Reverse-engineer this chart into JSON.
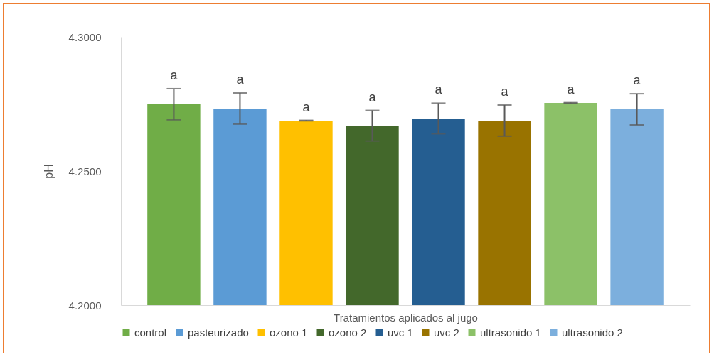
{
  "chart_data": {
    "type": "bar",
    "xlabel": "Tratamientos aplicados al jugo",
    "ylabel": "pH",
    "categories": [
      null
    ],
    "series": [
      {
        "name": "control",
        "color": "#70ad47",
        "values": [
          4.2749
        ],
        "errors": [
          0.0058
        ]
      },
      {
        "name": "pasteurizado",
        "color": "#5b9bd5",
        "values": [
          4.2733
        ],
        "errors": [
          0.0058
        ]
      },
      {
        "name": "ozono 1",
        "color": "#ffc000",
        "values": [
          4.2688
        ],
        "errors": [
          0.0001
        ]
      },
      {
        "name": "ozono 2",
        "color": "#43682b",
        "values": [
          4.2669
        ],
        "errors": [
          0.0057
        ]
      },
      {
        "name": "uvc 1",
        "color": "#255e91",
        "values": [
          4.2696
        ],
        "errors": [
          0.0057
        ]
      },
      {
        "name": "uvc 2",
        "color": "#997300",
        "values": [
          4.2688
        ],
        "errors": [
          0.0058
        ]
      },
      {
        "name": "ultrasonido 1",
        "color": "#8cc168",
        "values": [
          4.2754
        ],
        "errors": [
          0.0001
        ]
      },
      {
        "name": "ultrasonido 2",
        "color": "#7cafdd",
        "values": [
          4.273
        ],
        "errors": [
          0.0058
        ]
      }
    ],
    "annotations": [
      "a",
      "a",
      "a",
      "a",
      "a",
      "a",
      "a",
      "a"
    ],
    "ylim": [
      4.2,
      4.3
    ],
    "yticks": [
      {
        "value": 4.2,
        "label": "4.2000"
      },
      {
        "value": 4.25,
        "label": "4.2500"
      },
      {
        "value": 4.3,
        "label": "4.3000"
      }
    ],
    "grid": false,
    "legend": "bottom"
  }
}
